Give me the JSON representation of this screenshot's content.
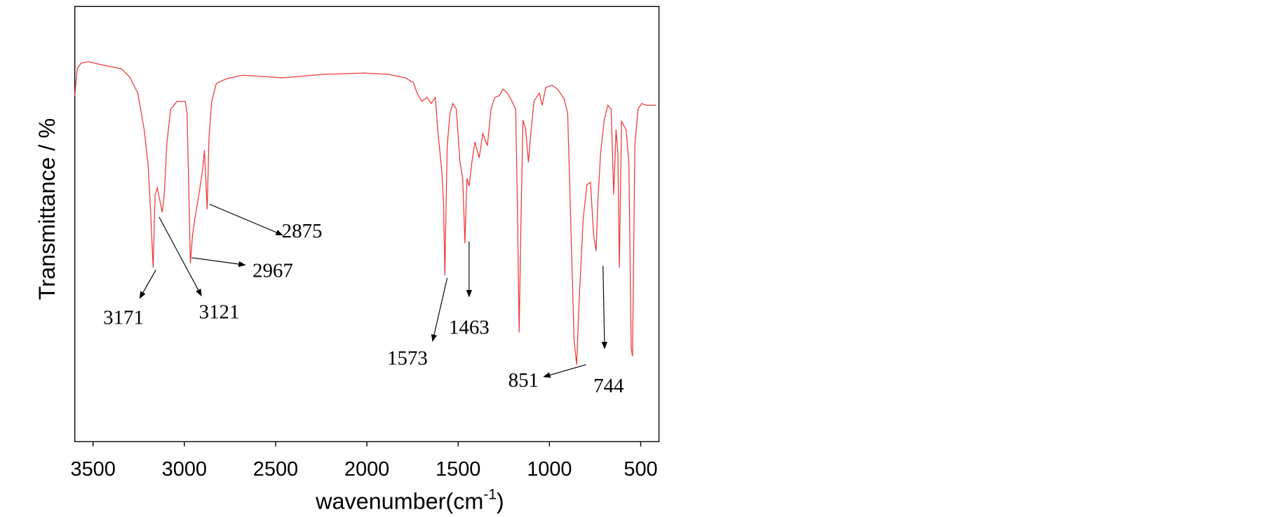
{
  "chart_data": {
    "type": "line",
    "x_label": [
      "wavenumber(cm",
      "-1",
      ")"
    ],
    "y_label": "Transmittance / %",
    "color": "#ee3a3a",
    "xlim": [
      3600,
      400
    ],
    "ylim": [
      0,
      100
    ],
    "xticks": [
      3500,
      3000,
      2500,
      2000,
      1500,
      1000,
      500
    ],
    "x": [
      3600,
      3587,
      3565,
      3520,
      3455,
      3345,
      3300,
      3255,
      3220,
      3198,
      3185,
      3171,
      3160,
      3148,
      3121,
      3110,
      3095,
      3075,
      3040,
      2995,
      2985,
      2975,
      2967,
      2955,
      2937,
      2920,
      2900,
      2890,
      2875,
      2865,
      2850,
      2825,
      2770,
      2680,
      2460,
      2240,
      2015,
      1880,
      1790,
      1745,
      1725,
      1700,
      1670,
      1648,
      1625,
      1612,
      1590,
      1580,
      1573,
      1560,
      1545,
      1530,
      1510,
      1490,
      1475,
      1463,
      1452,
      1440,
      1425,
      1408,
      1385,
      1365,
      1340,
      1320,
      1300,
      1275,
      1255,
      1230,
      1205,
      1185,
      1175,
      1166,
      1155,
      1145,
      1130,
      1115,
      1100,
      1085,
      1055,
      1040,
      1020,
      985,
      955,
      920,
      900,
      880,
      865,
      851,
      835,
      815,
      795,
      775,
      758,
      744,
      735,
      720,
      700,
      680,
      662,
      648,
      635,
      625,
      617,
      605,
      580,
      565,
      552,
      545,
      532,
      515,
      495,
      470,
      415
    ],
    "values": [
      79.5,
      85.7,
      87.0,
      87.3,
      86.6,
      85.7,
      83.8,
      80.1,
      71.7,
      63.3,
      53.1,
      40.0,
      56.8,
      58.3,
      52.7,
      56.8,
      68.9,
      76.4,
      78.2,
      78.2,
      75.4,
      56.8,
      41.0,
      47.5,
      52.7,
      56.8,
      62.4,
      67.0,
      53.4,
      69.8,
      78.2,
      82.3,
      83.4,
      84.2,
      83.6,
      84.4,
      84.7,
      84.4,
      83.6,
      82.5,
      80.1,
      78.2,
      79.1,
      77.7,
      79.1,
      71.7,
      62.4,
      54.9,
      38.2,
      68.0,
      75.4,
      77.7,
      76.4,
      64.2,
      60.5,
      45.6,
      60.5,
      58.7,
      64.2,
      68.9,
      65.2,
      70.8,
      68.0,
      76.4,
      79.1,
      79.5,
      81.0,
      80.1,
      78.2,
      76.4,
      53.1,
      25.1,
      53.1,
      73.9,
      71.7,
      64.2,
      71.7,
      78.2,
      80.1,
      77.3,
      81.4,
      81.9,
      81.0,
      78.8,
      75.4,
      45.6,
      23.3,
      17.7,
      34.5,
      51.2,
      59.0,
      59.6,
      47.5,
      43.8,
      54.9,
      66.1,
      73.9,
      77.3,
      76.4,
      56.8,
      71.7,
      66.1,
      40.0,
      73.6,
      71.7,
      64.2,
      21.4,
      19.6,
      68.0,
      76.4,
      77.7,
      77.3,
      77.3
    ],
    "annotations": [
      "3171",
      "3121",
      "2967",
      "2875",
      "1573",
      "1463",
      "851",
      "744"
    ]
  }
}
